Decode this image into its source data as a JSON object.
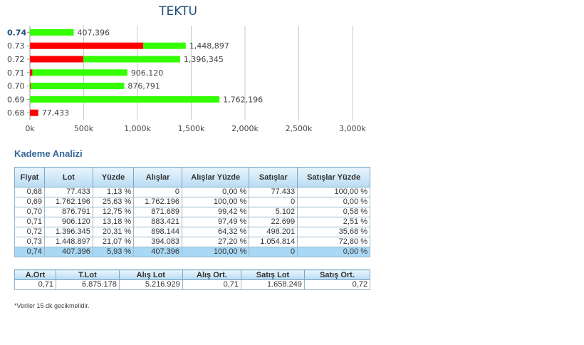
{
  "chart_data": {
    "type": "bar",
    "orientation": "horizontal",
    "stacked": true,
    "title": "TEKTU",
    "categories": [
      "0.74",
      "0.73",
      "0.72",
      "0.71",
      "0.70",
      "0.69",
      "0.68"
    ],
    "highlight_category": "0.74",
    "series": [
      {
        "color": "#ff0000",
        "values": [
          0,
          1054814,
          498201,
          22699,
          5102,
          0,
          77433
        ]
      },
      {
        "color": "#33ff00",
        "values": [
          407396,
          394083,
          898144,
          883421,
          871689,
          1762196,
          0
        ]
      }
    ],
    "totals": [
      "407,396",
      "1,448,897",
      "1,396,345",
      "906,120",
      "876,791",
      "1,762,196",
      "77,433"
    ],
    "xlim": [
      0,
      3000000
    ],
    "xticks": [
      0,
      500000,
      1000000,
      1500000,
      2000000,
      2500000,
      3000000
    ],
    "xtick_labels": [
      "0k",
      "500k",
      "1,000k",
      "1,500k",
      "2,000k",
      "2,500k",
      "3,000k"
    ],
    "grid": true
  },
  "section_title": "Kademe Analizi",
  "levels_table": {
    "headers": [
      "Fiyat",
      "Lot",
      "Yüzde",
      "Alışlar",
      "Alışlar Yüzde",
      "Satışlar",
      "Satışlar Yüzde"
    ],
    "rows": [
      [
        "0,68",
        "77.433",
        "1,13 %",
        "0",
        "0,00 %",
        "77.433",
        "100,00 %"
      ],
      [
        "0,69",
        "1.762.196",
        "25,63 %",
        "1.762.196",
        "100,00 %",
        "0",
        "0,00 %"
      ],
      [
        "0,70",
        "876.791",
        "12,75 %",
        "871.689",
        "99,42 %",
        "5.102",
        "0,58 %"
      ],
      [
        "0,71",
        "906.120",
        "13,18 %",
        "883.421",
        "97,49 %",
        "22.699",
        "2,51 %"
      ],
      [
        "0,72",
        "1.396.345",
        "20,31 %",
        "898.144",
        "64,32 %",
        "498.201",
        "35,68 %"
      ],
      [
        "0,73",
        "1.448.897",
        "21,07 %",
        "394.083",
        "27,20 %",
        "1.054.814",
        "72,80 %"
      ],
      [
        "0,74",
        "407.396",
        "5,93 %",
        "407.396",
        "100,00 %",
        "0",
        "0,00 %"
      ]
    ],
    "highlight_row": 6
  },
  "summary_table": {
    "headers": [
      "A.Ort",
      "T.Lot",
      "Alış Lot",
      "Alış Ort.",
      "Satış Lot",
      "Satış Ort."
    ],
    "row": [
      "0,71",
      "6.875.178",
      "5.216.929",
      "0,71",
      "1.658.249",
      "0,72"
    ]
  },
  "footnote": "*Veriler 15 dk gecikmelidir."
}
